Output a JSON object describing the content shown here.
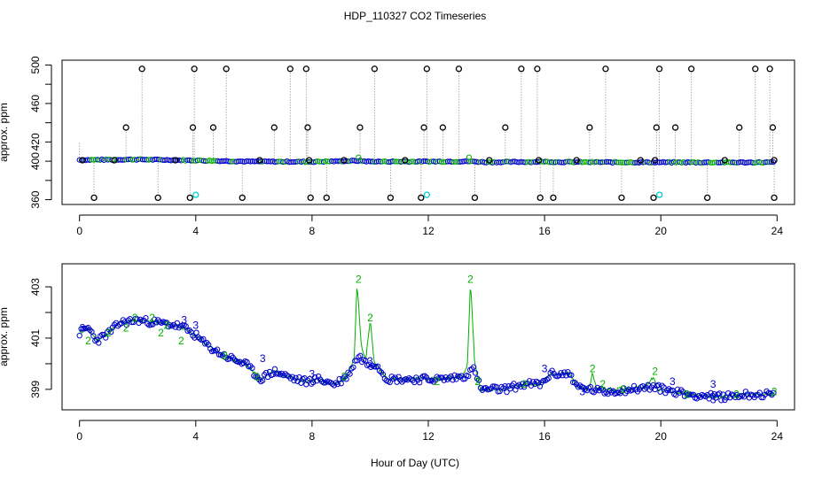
{
  "title": "HDP_110327  CO2 Timeseries",
  "xlabel": "Hour of Day (UTC)",
  "colors": {
    "raw": "#000000",
    "series1": "#0000cc",
    "series2": "#00b000",
    "flagged": "#00d0d0",
    "spike_line": "#999999"
  },
  "chart_data": [
    {
      "type": "scatter",
      "name": "top-panel",
      "title": "HDP_110327  CO2 Timeseries",
      "xlabel": "Hour of Day (UTC)",
      "ylabel": "approx. ppm",
      "xlim": [
        -0.6,
        24.6
      ],
      "ylim": [
        355,
        505
      ],
      "xticks": [
        0,
        4,
        8,
        12,
        16,
        20,
        24
      ],
      "yticks": [
        360,
        380,
        400,
        420,
        440,
        460,
        480,
        500
      ],
      "ytick_labels": [
        "360",
        "",
        "400",
        "420",
        "",
        "460",
        "",
        "500"
      ],
      "baseline_segments": [
        [
          0,
          401.3
        ],
        [
          2,
          401.8
        ],
        [
          4,
          400.8
        ],
        [
          6,
          399.6
        ],
        [
          8,
          399.4
        ],
        [
          9.6,
          400.4
        ],
        [
          10,
          399.6
        ],
        [
          12,
          399.6
        ],
        [
          13.4,
          399.8
        ],
        [
          14,
          399.0
        ],
        [
          16,
          399.4
        ],
        [
          17,
          399.0
        ],
        [
          20,
          398.8
        ],
        [
          24,
          398.7
        ]
      ],
      "raw_spikes": [
        {
          "x": 0.5,
          "y": 362
        },
        {
          "x": 1.6,
          "y": 435
        },
        {
          "x": 2.15,
          "y": 496
        },
        {
          "x": 2.7,
          "y": 362
        },
        {
          "x": 3.8,
          "y": 362
        },
        {
          "x": 3.9,
          "y": 435
        },
        {
          "x": 3.95,
          "y": 496
        },
        {
          "x": 4.6,
          "y": 435
        },
        {
          "x": 5.05,
          "y": 496
        },
        {
          "x": 5.6,
          "y": 362
        },
        {
          "x": 6.7,
          "y": 435
        },
        {
          "x": 7.25,
          "y": 496
        },
        {
          "x": 7.8,
          "y": 496
        },
        {
          "x": 7.85,
          "y": 435
        },
        {
          "x": 7.95,
          "y": 362
        },
        {
          "x": 8.5,
          "y": 362
        },
        {
          "x": 9.65,
          "y": 435
        },
        {
          "x": 10.15,
          "y": 496
        },
        {
          "x": 10.7,
          "y": 362
        },
        {
          "x": 11.75,
          "y": 362
        },
        {
          "x": 11.85,
          "y": 435
        },
        {
          "x": 11.95,
          "y": 496
        },
        {
          "x": 12.5,
          "y": 435
        },
        {
          "x": 13.05,
          "y": 496
        },
        {
          "x": 13.6,
          "y": 362
        },
        {
          "x": 14.65,
          "y": 435
        },
        {
          "x": 15.2,
          "y": 496
        },
        {
          "x": 15.75,
          "y": 496
        },
        {
          "x": 15.85,
          "y": 362
        },
        {
          "x": 16.3,
          "y": 362
        },
        {
          "x": 17.55,
          "y": 435
        },
        {
          "x": 18.1,
          "y": 496
        },
        {
          "x": 18.65,
          "y": 362
        },
        {
          "x": 19.75,
          "y": 362
        },
        {
          "x": 19.85,
          "y": 435
        },
        {
          "x": 19.95,
          "y": 496
        },
        {
          "x": 20.5,
          "y": 435
        },
        {
          "x": 21.05,
          "y": 496
        },
        {
          "x": 21.6,
          "y": 362
        },
        {
          "x": 22.7,
          "y": 435
        },
        {
          "x": 23.25,
          "y": 496
        },
        {
          "x": 23.75,
          "y": 496
        },
        {
          "x": 23.85,
          "y": 435
        },
        {
          "x": 23.9,
          "y": 362
        }
      ],
      "raw_on_baseline": [
        {
          "x": 0.1,
          "y": 401
        },
        {
          "x": 1.2,
          "y": 401
        },
        {
          "x": 3.3,
          "y": 401
        },
        {
          "x": 6.2,
          "y": 401
        },
        {
          "x": 7.9,
          "y": 401
        },
        {
          "x": 9.1,
          "y": 401
        },
        {
          "x": 11.2,
          "y": 401
        },
        {
          "x": 14.1,
          "y": 401
        },
        {
          "x": 15.8,
          "y": 401
        },
        {
          "x": 17.1,
          "y": 401
        },
        {
          "x": 19.3,
          "y": 401
        },
        {
          "x": 19.8,
          "y": 401
        },
        {
          "x": 22.2,
          "y": 401
        },
        {
          "x": 23.9,
          "y": 401
        }
      ],
      "flagged_points": [
        {
          "x": 4.0,
          "y": 365
        },
        {
          "x": 11.95,
          "y": 365
        },
        {
          "x": 19.95,
          "y": 365
        }
      ]
    },
    {
      "type": "scatter",
      "name": "bottom-panel",
      "xlabel": "Hour of Day (UTC)",
      "ylabel": "approx. ppm",
      "xlim": [
        -0.6,
        24.6
      ],
      "ylim": [
        398.2,
        403.9
      ],
      "xticks": [
        0,
        4,
        8,
        12,
        16,
        20,
        24
      ],
      "yticks": [
        399,
        400,
        401,
        402,
        403
      ],
      "ytick_labels": [
        "399",
        "",
        "401",
        "",
        "403"
      ],
      "series": [
        {
          "name": "3",
          "marker": "circle",
          "color": "#0000cc",
          "trend": [
            [
              0,
              401.2
            ],
            [
              0.3,
              401.4
            ],
            [
              0.6,
              400.9
            ],
            [
              1.0,
              401.2
            ],
            [
              1.4,
              401.6
            ],
            [
              2.0,
              401.7
            ],
            [
              2.7,
              401.6
            ],
            [
              3.3,
              401.5
            ],
            [
              3.6,
              401.4
            ],
            [
              4.0,
              401.1
            ],
            [
              4.4,
              400.7
            ],
            [
              5.0,
              400.3
            ],
            [
              5.7,
              400.0
            ],
            [
              6.2,
              399.4
            ],
            [
              6.7,
              399.7
            ],
            [
              7.4,
              399.4
            ],
            [
              7.8,
              399.3
            ],
            [
              8.2,
              399.4
            ],
            [
              8.8,
              399.2
            ],
            [
              9.2,
              399.5
            ],
            [
              9.6,
              400.3
            ],
            [
              9.9,
              400.0
            ],
            [
              10.2,
              400.0
            ],
            [
              10.6,
              399.4
            ],
            [
              11.3,
              399.4
            ],
            [
              11.9,
              399.4
            ],
            [
              12.5,
              399.4
            ],
            [
              13.2,
              399.5
            ],
            [
              13.6,
              399.8
            ],
            [
              13.8,
              399.0
            ],
            [
              14.6,
              399.0
            ],
            [
              15.3,
              399.2
            ],
            [
              15.9,
              399.2
            ],
            [
              16.2,
              399.6
            ],
            [
              16.9,
              399.6
            ],
            [
              17.1,
              399.1
            ],
            [
              18.0,
              398.9
            ],
            [
              19.0,
              399.0
            ],
            [
              19.7,
              399.1
            ],
            [
              20.1,
              399.0
            ],
            [
              21.0,
              398.8
            ],
            [
              22.0,
              398.7
            ],
            [
              23.0,
              398.8
            ],
            [
              23.9,
              398.8
            ]
          ],
          "labels": [
            {
              "x": 0.1,
              "y": 401.4
            },
            {
              "x": 3.6,
              "y": 401.7
            },
            {
              "x": 4.0,
              "y": 401.5
            },
            {
              "x": 6.3,
              "y": 400.2
            },
            {
              "x": 8.0,
              "y": 399.6
            },
            {
              "x": 10.0,
              "y": 400.1
            },
            {
              "x": 16.0,
              "y": 399.8
            },
            {
              "x": 17.3,
              "y": 398.9
            },
            {
              "x": 20.4,
              "y": 399.3
            },
            {
              "x": 21.8,
              "y": 399.2
            },
            {
              "x": 21.8,
              "y": 398.6
            }
          ]
        },
        {
          "name": "2",
          "marker": "digit",
          "color": "#00b000",
          "trend": [
            [
              0,
              401.2
            ],
            [
              0.3,
              401.4
            ],
            [
              0.6,
              400.9
            ],
            [
              1.0,
              401.2
            ],
            [
              1.4,
              401.6
            ],
            [
              2.0,
              401.7
            ],
            [
              2.7,
              401.6
            ],
            [
              3.3,
              401.5
            ],
            [
              3.6,
              401.4
            ],
            [
              4.0,
              401.1
            ],
            [
              4.4,
              400.7
            ],
            [
              5.0,
              400.3
            ],
            [
              5.7,
              400.0
            ],
            [
              6.2,
              399.4
            ],
            [
              6.7,
              399.7
            ],
            [
              7.4,
              399.4
            ],
            [
              7.8,
              399.3
            ],
            [
              8.2,
              399.4
            ],
            [
              8.8,
              399.2
            ],
            [
              9.2,
              399.5
            ],
            [
              9.45,
              400.2
            ],
            [
              9.55,
              403.2
            ],
            [
              9.7,
              400.6
            ],
            [
              9.85,
              400.2
            ],
            [
              10.0,
              401.7
            ],
            [
              10.15,
              400.0
            ],
            [
              10.6,
              399.4
            ],
            [
              11.3,
              399.4
            ],
            [
              11.9,
              399.4
            ],
            [
              12.5,
              399.4
            ],
            [
              13.2,
              399.5
            ],
            [
              13.35,
              400.0
            ],
            [
              13.45,
              403.2
            ],
            [
              13.6,
              400.0
            ],
            [
              13.8,
              399.0
            ],
            [
              14.6,
              399.0
            ],
            [
              15.3,
              399.2
            ],
            [
              15.9,
              399.2
            ],
            [
              16.2,
              399.6
            ],
            [
              16.9,
              399.6
            ],
            [
              17.1,
              399.1
            ],
            [
              17.5,
              399.0
            ],
            [
              17.65,
              399.6
            ],
            [
              17.8,
              399.0
            ],
            [
              18.5,
              399.0
            ],
            [
              19.5,
              399.1
            ],
            [
              19.75,
              399.5
            ],
            [
              19.9,
              399.0
            ],
            [
              20.5,
              398.9
            ],
            [
              21.0,
              398.8
            ],
            [
              22.0,
              398.7
            ],
            [
              23.0,
              398.8
            ],
            [
              23.9,
              398.8
            ]
          ],
          "labels": [
            {
              "x": 0.3,
              "y": 400.9
            },
            {
              "x": 1.0,
              "y": 401.2
            },
            {
              "x": 1.6,
              "y": 401.4
            },
            {
              "x": 1.9,
              "y": 401.8
            },
            {
              "x": 2.8,
              "y": 401.2
            },
            {
              "x": 2.5,
              "y": 401.8
            },
            {
              "x": 3.0,
              "y": 401.5
            },
            {
              "x": 3.5,
              "y": 400.9
            },
            {
              "x": 5.0,
              "y": 400.3
            },
            {
              "x": 6.1,
              "y": 399.5
            },
            {
              "x": 9.1,
              "y": 399.5
            },
            {
              "x": 9.6,
              "y": 403.3
            },
            {
              "x": 10.0,
              "y": 401.8
            },
            {
              "x": 13.45,
              "y": 403.3
            },
            {
              "x": 12.3,
              "y": 399.3
            },
            {
              "x": 13.7,
              "y": 399.3
            },
            {
              "x": 15.3,
              "y": 399.2
            },
            {
              "x": 17.65,
              "y": 399.8
            },
            {
              "x": 18.0,
              "y": 399.2
            },
            {
              "x": 18.7,
              "y": 399.0
            },
            {
              "x": 19.8,
              "y": 399.7
            },
            {
              "x": 20.9,
              "y": 398.8
            },
            {
              "x": 22.6,
              "y": 398.8
            },
            {
              "x": 23.9,
              "y": 398.9
            }
          ]
        }
      ]
    }
  ]
}
